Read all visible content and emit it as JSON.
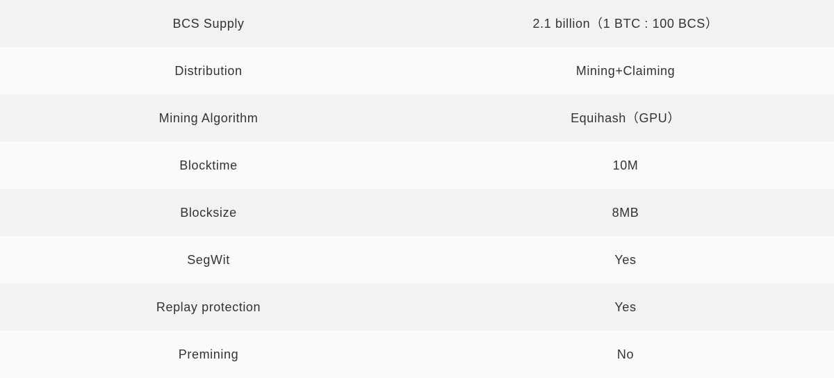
{
  "table": {
    "rows": [
      {
        "label": "BCS Supply",
        "value": "2.1 billion（1 BTC : 100 BCS）"
      },
      {
        "label": "Distribution",
        "value": "Mining+Claiming"
      },
      {
        "label": "Mining Algorithm",
        "value": "Equihash（GPU）"
      },
      {
        "label": "Blocktime",
        "value": "10M"
      },
      {
        "label": "Blocksize",
        "value": "8MB"
      },
      {
        "label": "SegWit",
        "value": "Yes"
      },
      {
        "label": "Replay protection",
        "value": "Yes"
      },
      {
        "label": "Premining",
        "value": "No"
      }
    ]
  },
  "colors": {
    "row_odd": "#f2f2f2",
    "row_even": "#fafafa",
    "text": "#333333"
  }
}
